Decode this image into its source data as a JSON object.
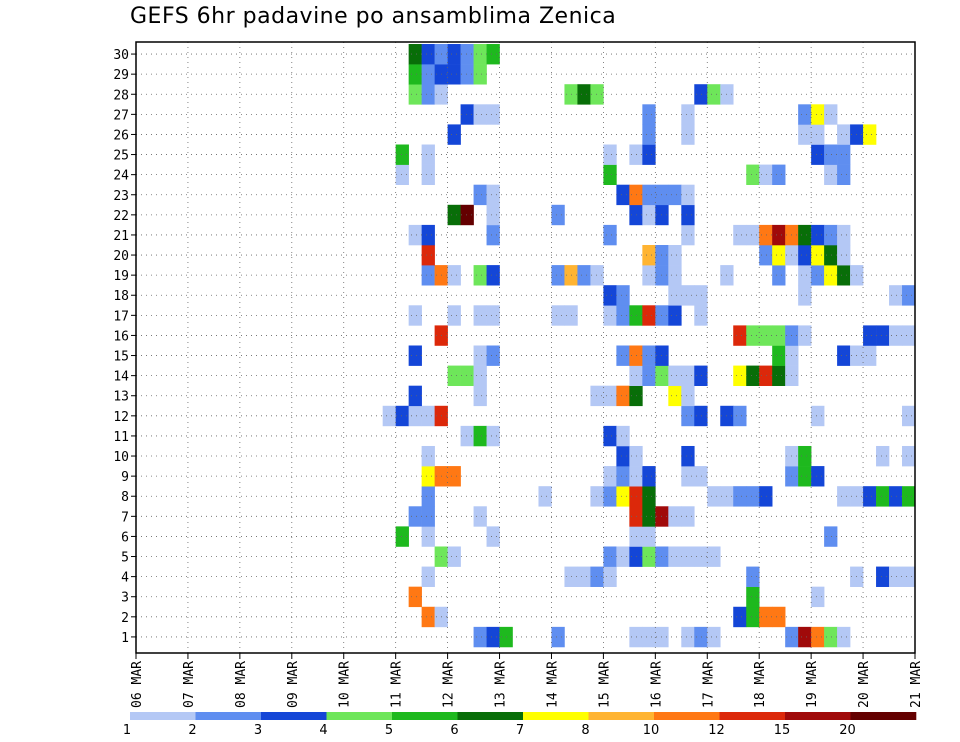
{
  "chart_data": {
    "type": "heatmap",
    "title": "GEFS 6hr padavine po ansamblima Zenica",
    "xlabel": "",
    "ylabel": "",
    "y_members": [
      "1",
      "2",
      "3",
      "4",
      "5",
      "6",
      "7",
      "8",
      "9",
      "10",
      "11",
      "12",
      "13",
      "14",
      "15",
      "16",
      "17",
      "18",
      "19",
      "20",
      "21",
      "22",
      "23",
      "24",
      "25",
      "26",
      "27",
      "28",
      "29",
      "30"
    ],
    "x_day_labels": [
      "06 MAR",
      "07 MAR",
      "08 MAR",
      "09 MAR",
      "10 MAR",
      "11 MAR",
      "12 MAR",
      "13 MAR",
      "14 MAR",
      "15 MAR",
      "16 MAR",
      "17 MAR",
      "18 MAR",
      "19 MAR",
      "20 MAR",
      "21 MAR"
    ],
    "x_steps_per_day": 4,
    "legend": {
      "labels": [
        "1",
        "2",
        "3",
        "4",
        "5",
        "6",
        "7",
        "8",
        "10",
        "12",
        "15",
        "20"
      ],
      "colors": [
        "#b4c8f5",
        "#5f8ef0",
        "#1446d7",
        "#6ee65a",
        "#1eb91e",
        "#086e08",
        "#ffff00",
        "#ffb432",
        "#ff7814",
        "#dc280a",
        "#a00a0a",
        "#640000"
      ]
    },
    "units": "mm / 6h, color class index 0-11 (0 = 1-2 mm ... 11 = >20 mm)",
    "cells": [
      {
        "m": 1,
        "t": [
          [
            26,
            1
          ],
          [
            27,
            2
          ],
          [
            28,
            4
          ],
          [
            32,
            1
          ],
          [
            38,
            0
          ],
          [
            39,
            0
          ],
          [
            40,
            0
          ],
          [
            42,
            0
          ],
          [
            43,
            1
          ],
          [
            44,
            0
          ],
          [
            50,
            1
          ],
          [
            51,
            10
          ],
          [
            52,
            8
          ],
          [
            53,
            3
          ],
          [
            54,
            0
          ]
        ]
      },
      {
        "m": 2,
        "t": [
          [
            22,
            8
          ],
          [
            23,
            0
          ],
          [
            46,
            2
          ],
          [
            47,
            4
          ],
          [
            48,
            8
          ],
          [
            49,
            8
          ],
          [
            60,
            1
          ],
          [
            61,
            2
          ]
        ]
      },
      {
        "m": 3,
        "t": [
          [
            21,
            8
          ],
          [
            47,
            4
          ],
          [
            52,
            0
          ]
        ]
      },
      {
        "m": 4,
        "t": [
          [
            22,
            0
          ],
          [
            33,
            0
          ],
          [
            34,
            0
          ],
          [
            35,
            1
          ],
          [
            36,
            0
          ],
          [
            47,
            1
          ],
          [
            55,
            0
          ],
          [
            57,
            2
          ],
          [
            58,
            0
          ],
          [
            59,
            0
          ],
          [
            61,
            0
          ]
        ]
      },
      {
        "m": 5,
        "t": [
          [
            23,
            3
          ],
          [
            24,
            0
          ],
          [
            36,
            1
          ],
          [
            37,
            0
          ],
          [
            38,
            2
          ],
          [
            39,
            3
          ],
          [
            40,
            1
          ],
          [
            41,
            0
          ],
          [
            42,
            0
          ],
          [
            43,
            0
          ],
          [
            44,
            0
          ]
        ]
      },
      {
        "m": 6,
        "t": [
          [
            20,
            4
          ],
          [
            22,
            0
          ],
          [
            27,
            0
          ],
          [
            38,
            0
          ],
          [
            39,
            0
          ],
          [
            53,
            1
          ],
          [
            60,
            0
          ]
        ]
      },
      {
        "m": 7,
        "t": [
          [
            21,
            1
          ],
          [
            22,
            1
          ],
          [
            26,
            0
          ],
          [
            38,
            9
          ],
          [
            39,
            5
          ],
          [
            40,
            10
          ],
          [
            41,
            0
          ],
          [
            42,
            0
          ]
        ]
      },
      {
        "m": 8,
        "t": [
          [
            22,
            1
          ],
          [
            31,
            0
          ],
          [
            35,
            0
          ],
          [
            36,
            1
          ],
          [
            37,
            6
          ],
          [
            38,
            9
          ],
          [
            39,
            5
          ],
          [
            44,
            0
          ],
          [
            45,
            0
          ],
          [
            46,
            1
          ],
          [
            47,
            1
          ],
          [
            48,
            2
          ],
          [
            54,
            0
          ],
          [
            55,
            0
          ],
          [
            56,
            2
          ],
          [
            57,
            4
          ],
          [
            58,
            2
          ],
          [
            59,
            4
          ],
          [
            60,
            5
          ]
        ]
      },
      {
        "m": 9,
        "t": [
          [
            22,
            6
          ],
          [
            23,
            8
          ],
          [
            24,
            8
          ],
          [
            36,
            0
          ],
          [
            37,
            1
          ],
          [
            38,
            0
          ],
          [
            39,
            2
          ],
          [
            42,
            0
          ],
          [
            43,
            0
          ],
          [
            50,
            1
          ],
          [
            51,
            4
          ],
          [
            52,
            2
          ]
        ]
      },
      {
        "m": 10,
        "t": [
          [
            22,
            0
          ],
          [
            37,
            2
          ],
          [
            38,
            0
          ],
          [
            42,
            2
          ],
          [
            50,
            0
          ],
          [
            51,
            4
          ],
          [
            57,
            0
          ],
          [
            59,
            0
          ]
        ]
      },
      {
        "m": 11,
        "t": [
          [
            25,
            0
          ],
          [
            26,
            4
          ],
          [
            27,
            0
          ],
          [
            36,
            2
          ],
          [
            37,
            0
          ]
        ]
      },
      {
        "m": 12,
        "t": [
          [
            19,
            0
          ],
          [
            20,
            2
          ],
          [
            21,
            0
          ],
          [
            22,
            0
          ],
          [
            23,
            9
          ],
          [
            42,
            1
          ],
          [
            43,
            2
          ],
          [
            45,
            2
          ],
          [
            46,
            1
          ],
          [
            52,
            0
          ],
          [
            59,
            0
          ],
          [
            60,
            0
          ]
        ]
      },
      {
        "m": 13,
        "t": [
          [
            21,
            2
          ],
          [
            26,
            0
          ],
          [
            35,
            0
          ],
          [
            36,
            0
          ],
          [
            37,
            8
          ],
          [
            38,
            5
          ],
          [
            41,
            6
          ],
          [
            42,
            0
          ]
        ]
      },
      {
        "m": 14,
        "t": [
          [
            24,
            3
          ],
          [
            25,
            3
          ],
          [
            26,
            0
          ],
          [
            38,
            0
          ],
          [
            39,
            1
          ],
          [
            40,
            3
          ],
          [
            41,
            0
          ],
          [
            42,
            0
          ],
          [
            43,
            2
          ],
          [
            46,
            6
          ],
          [
            47,
            5
          ],
          [
            48,
            9
          ],
          [
            49,
            5
          ],
          [
            50,
            0
          ]
        ]
      },
      {
        "m": 15,
        "t": [
          [
            21,
            2
          ],
          [
            26,
            0
          ],
          [
            27,
            1
          ],
          [
            37,
            1
          ],
          [
            38,
            8
          ],
          [
            39,
            1
          ],
          [
            40,
            2
          ],
          [
            49,
            4
          ],
          [
            50,
            0
          ],
          [
            54,
            2
          ],
          [
            55,
            0
          ],
          [
            56,
            0
          ]
        ]
      },
      {
        "m": 16,
        "t": [
          [
            23,
            9
          ],
          [
            46,
            9
          ],
          [
            47,
            3
          ],
          [
            48,
            3
          ],
          [
            49,
            3
          ],
          [
            50,
            1
          ],
          [
            51,
            0
          ],
          [
            56,
            2
          ],
          [
            57,
            2
          ],
          [
            58,
            0
          ],
          [
            59,
            0
          ]
        ]
      },
      {
        "m": 17,
        "t": [
          [
            21,
            0
          ],
          [
            24,
            0
          ],
          [
            26,
            0
          ],
          [
            27,
            0
          ],
          [
            32,
            0
          ],
          [
            33,
            0
          ],
          [
            36,
            0
          ],
          [
            37,
            1
          ],
          [
            38,
            4
          ],
          [
            39,
            9
          ],
          [
            40,
            1
          ],
          [
            41,
            2
          ],
          [
            43,
            0
          ]
        ]
      },
      {
        "m": 18,
        "t": [
          [
            36,
            2
          ],
          [
            37,
            1
          ],
          [
            41,
            0
          ],
          [
            42,
            0
          ],
          [
            43,
            0
          ],
          [
            51,
            0
          ],
          [
            58,
            0
          ],
          [
            59,
            1
          ]
        ]
      },
      {
        "m": 19,
        "t": [
          [
            22,
            1
          ],
          [
            23,
            8
          ],
          [
            24,
            0
          ],
          [
            26,
            3
          ],
          [
            27,
            2
          ],
          [
            32,
            1
          ],
          [
            33,
            7
          ],
          [
            34,
            1
          ],
          [
            35,
            0
          ],
          [
            39,
            0
          ],
          [
            40,
            1
          ],
          [
            41,
            0
          ],
          [
            45,
            0
          ],
          [
            49,
            1
          ],
          [
            51,
            0
          ],
          [
            52,
            1
          ],
          [
            53,
            6
          ],
          [
            54,
            5
          ],
          [
            55,
            0
          ]
        ]
      },
      {
        "m": 20,
        "t": [
          [
            22,
            9
          ],
          [
            39,
            7
          ],
          [
            40,
            1
          ],
          [
            41,
            0
          ],
          [
            48,
            1
          ],
          [
            49,
            6
          ],
          [
            50,
            0
          ],
          [
            51,
            2
          ],
          [
            52,
            6
          ],
          [
            53,
            5
          ],
          [
            54,
            0
          ]
        ]
      },
      {
        "m": 21,
        "t": [
          [
            21,
            0
          ],
          [
            22,
            2
          ],
          [
            27,
            1
          ],
          [
            36,
            1
          ],
          [
            42,
            0
          ],
          [
            46,
            0
          ],
          [
            47,
            0
          ],
          [
            48,
            8
          ],
          [
            49,
            10
          ],
          [
            50,
            8
          ],
          [
            51,
            5
          ],
          [
            52,
            2
          ],
          [
            53,
            1
          ],
          [
            54,
            0
          ],
          [
            60,
            0
          ]
        ]
      },
      {
        "m": 22,
        "t": [
          [
            24,
            5
          ],
          [
            25,
            11
          ],
          [
            27,
            0
          ],
          [
            32,
            1
          ],
          [
            38,
            2
          ],
          [
            39,
            0
          ],
          [
            40,
            2
          ],
          [
            42,
            2
          ]
        ]
      },
      {
        "m": 23,
        "t": [
          [
            26,
            1
          ],
          [
            27,
            0
          ],
          [
            37,
            2
          ],
          [
            38,
            8
          ],
          [
            39,
            1
          ],
          [
            40,
            1
          ],
          [
            41,
            1
          ],
          [
            42,
            0
          ]
        ]
      },
      {
        "m": 24,
        "t": [
          [
            20,
            0
          ],
          [
            22,
            0
          ],
          [
            36,
            4
          ],
          [
            47,
            3
          ],
          [
            48,
            0
          ],
          [
            49,
            1
          ],
          [
            53,
            0
          ],
          [
            54,
            1
          ]
        ]
      },
      {
        "m": 25,
        "t": [
          [
            20,
            4
          ],
          [
            22,
            0
          ],
          [
            36,
            0
          ],
          [
            38,
            0
          ],
          [
            39,
            2
          ],
          [
            52,
            2
          ],
          [
            53,
            1
          ],
          [
            54,
            1
          ]
        ]
      },
      {
        "m": 26,
        "t": [
          [
            24,
            2
          ],
          [
            39,
            1
          ],
          [
            42,
            0
          ],
          [
            51,
            0
          ],
          [
            52,
            0
          ],
          [
            54,
            0
          ],
          [
            55,
            2
          ],
          [
            56,
            6
          ]
        ]
      },
      {
        "m": 27,
        "t": [
          [
            25,
            2
          ],
          [
            26,
            0
          ],
          [
            27,
            0
          ],
          [
            39,
            1
          ],
          [
            42,
            0
          ],
          [
            51,
            1
          ],
          [
            52,
            6
          ],
          [
            53,
            0
          ]
        ]
      },
      {
        "m": 28,
        "t": [
          [
            21,
            3
          ],
          [
            22,
            1
          ],
          [
            23,
            0
          ],
          [
            33,
            3
          ],
          [
            34,
            5
          ],
          [
            35,
            3
          ],
          [
            43,
            2
          ],
          [
            44,
            3
          ],
          [
            45,
            0
          ]
        ]
      },
      {
        "m": 29,
        "t": [
          [
            21,
            4
          ],
          [
            22,
            1
          ],
          [
            23,
            2
          ],
          [
            24,
            2
          ],
          [
            25,
            1
          ],
          [
            26,
            3
          ]
        ]
      },
      {
        "m": 30,
        "t": [
          [
            21,
            5
          ],
          [
            22,
            2
          ],
          [
            23,
            1
          ],
          [
            24,
            2
          ],
          [
            25,
            1
          ],
          [
            26,
            3
          ],
          [
            27,
            4
          ]
        ]
      }
    ]
  }
}
